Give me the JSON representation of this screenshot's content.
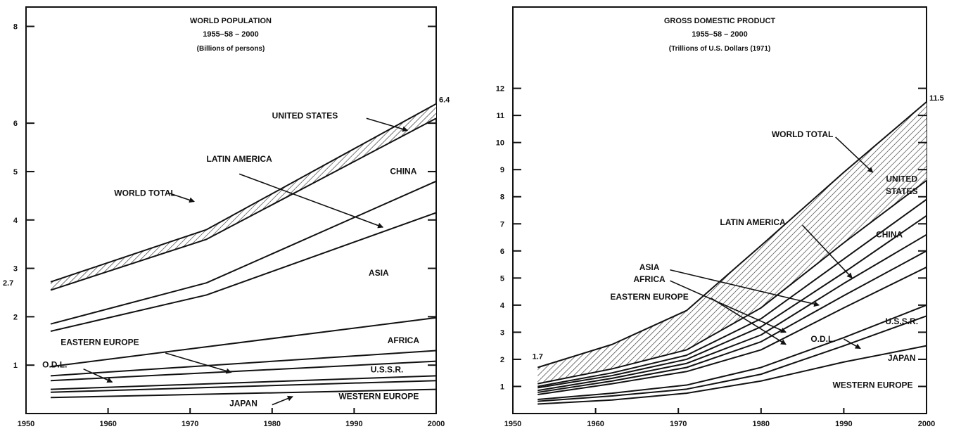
{
  "chart_data": [
    {
      "type": "area",
      "title_lines": [
        "WORLD POPULATION",
        "1955–58 – 2000",
        "(Billions of persons)"
      ],
      "xlabel": "",
      "ylabel": "",
      "xlim": [
        1950,
        2000
      ],
      "ylim": [
        0,
        8.4
      ],
      "xticks": [
        1950,
        1960,
        1970,
        1980,
        1990,
        2000
      ],
      "yticks": [
        1,
        2,
        3,
        4,
        5,
        6,
        8
      ],
      "extra_ytick_labels": [
        {
          "value": 2.7,
          "label": "2.7"
        }
      ],
      "end_labels": [
        {
          "x": 2000,
          "y": 6.4,
          "label": "6.4"
        }
      ],
      "grid": false,
      "hatched_band": [
        "WORLD TOTAL",
        "UNITED STATES"
      ],
      "series": [
        {
          "name": "WORLD TOTAL",
          "x": [
            1953,
            1972,
            2000
          ],
          "y": [
            2.72,
            3.8,
            6.4
          ]
        },
        {
          "name": "UNITED STATES",
          "x": [
            1953,
            1972,
            2000
          ],
          "y": [
            2.55,
            3.6,
            6.1
          ]
        },
        {
          "name": "CHINA",
          "x": [
            1953,
            1972,
            2000
          ],
          "y": [
            1.85,
            2.7,
            4.8
          ]
        },
        {
          "name": "LATIN AMERICA",
          "x": [
            1953,
            1972,
            2000
          ],
          "y": [
            1.7,
            2.45,
            4.15
          ]
        },
        {
          "name": "ASIA",
          "x": [
            1953,
            2000
          ],
          "y": [
            0.97,
            1.98
          ]
        },
        {
          "name": "AFRICA",
          "x": [
            1953,
            2000
          ],
          "y": [
            0.78,
            1.3
          ]
        },
        {
          "name": "EASTERN EUROPE",
          "x": [
            1953,
            2000
          ],
          "y": [
            0.68,
            1.08
          ]
        },
        {
          "name": "U.S.S.R.",
          "x": [
            1953,
            2000
          ],
          "y": [
            0.5,
            0.78
          ]
        },
        {
          "name": "O.D.L.",
          "x": [
            1953,
            2000
          ],
          "y": [
            0.44,
            0.68
          ]
        },
        {
          "name": "JAPAN",
          "x": [
            1953,
            2000
          ],
          "y": [
            0.33,
            0.5
          ]
        }
      ],
      "labels": [
        {
          "text": "UNITED STATES",
          "x": 1984,
          "y": 6.1
        },
        {
          "text": "LATIN AMERICA",
          "x": 1976,
          "y": 5.2
        },
        {
          "text": "CHINA",
          "x": 1996,
          "y": 4.95
        },
        {
          "text": "WORLD TOTAL",
          "x": 1964.5,
          "y": 4.5
        },
        {
          "text": "ASIA",
          "x": 1993,
          "y": 2.85
        },
        {
          "text": "EASTERN EUROPE",
          "x": 1959,
          "y": 1.42
        },
        {
          "text": "AFRICA",
          "x": 1996,
          "y": 1.45
        },
        {
          "text": "O.D.L.",
          "x": 1953.5,
          "y": 0.95
        },
        {
          "text": "U.S.S.R.",
          "x": 1994,
          "y": 0.85
        },
        {
          "text": "JAPAN",
          "x": 1976.5,
          "y": 0.15
        },
        {
          "text": "WESTERN EUROPE",
          "x": 1993,
          "y": 0.3
        }
      ],
      "arrows": [
        {
          "from": [
            1991.5,
            6.1
          ],
          "to": [
            1996.5,
            5.85
          ]
        },
        {
          "from": [
            1976,
            4.95
          ],
          "to": [
            1993.5,
            3.85
          ]
        },
        {
          "from": [
            1967.5,
            4.55
          ],
          "to": [
            1970.5,
            4.38
          ]
        },
        {
          "from": [
            1967,
            1.25
          ],
          "to": [
            1975,
            0.85
          ]
        },
        {
          "from": [
            1957,
            0.92
          ],
          "to": [
            1960.5,
            0.65
          ]
        },
        {
          "from": [
            1980,
            0.18
          ],
          "to": [
            1982.5,
            0.35
          ]
        }
      ]
    },
    {
      "type": "area",
      "title_lines": [
        "GROSS DOMESTIC PRODUCT",
        "1955–58 – 2000",
        "(Trillions of U.S. Dollars (1971)"
      ],
      "xlabel": "",
      "ylabel": "",
      "xlim": [
        1950,
        2000
      ],
      "ylim": [
        0,
        15
      ],
      "xticks": [
        1950,
        1960,
        1970,
        1980,
        1990,
        2000
      ],
      "yticks": [
        1,
        2,
        3,
        4,
        5,
        6,
        7,
        8,
        9,
        10,
        11,
        12
      ],
      "end_labels": [
        {
          "x": 2000,
          "y": 11.5,
          "label": "11.5"
        },
        {
          "x": 1953,
          "y": 1.7,
          "label": "1.7"
        }
      ],
      "grid": false,
      "hatched_band": [
        "WORLD TOTAL",
        "UNITED STATES"
      ],
      "series": [
        {
          "name": "WORLD TOTAL",
          "x": [
            1953,
            1962,
            1971,
            1980,
            1990,
            2000
          ],
          "y": [
            1.7,
            2.55,
            3.8,
            6.2,
            8.9,
            11.5
          ]
        },
        {
          "name": "UNITED STATES",
          "x": [
            1953,
            1962,
            1971,
            1980,
            1990,
            2000
          ],
          "y": [
            1.1,
            1.65,
            2.35,
            3.9,
            6.3,
            8.6
          ]
        },
        {
          "name": "CHINA",
          "x": [
            1953,
            1962,
            1971,
            1980,
            1990,
            2000
          ],
          "y": [
            1.0,
            1.5,
            2.15,
            3.5,
            5.7,
            7.9
          ]
        },
        {
          "name": "LATIN AMERICA",
          "x": [
            1953,
            1962,
            1971,
            1980,
            1990,
            2000
          ],
          "y": [
            0.95,
            1.4,
            2.0,
            3.2,
            5.2,
            7.3
          ]
        },
        {
          "name": "ASIA",
          "x": [
            1953,
            1962,
            1971,
            1980,
            1990,
            2000
          ],
          "y": [
            0.85,
            1.3,
            1.85,
            2.9,
            4.8,
            6.6
          ]
        },
        {
          "name": "AFRICA",
          "x": [
            1953,
            1962,
            1971,
            1980,
            1990,
            2000
          ],
          "y": [
            0.78,
            1.2,
            1.7,
            2.65,
            4.35,
            6.0
          ]
        },
        {
          "name": "EASTERN EUROPE",
          "x": [
            1953,
            1962,
            1971,
            1980,
            1990,
            2000
          ],
          "y": [
            0.7,
            1.1,
            1.55,
            2.35,
            3.9,
            5.4
          ]
        },
        {
          "name": "U.S.S.R.",
          "x": [
            1953,
            1962,
            1971,
            1980,
            1990,
            2000
          ],
          "y": [
            0.52,
            0.75,
            1.05,
            1.7,
            2.8,
            4.0
          ]
        },
        {
          "name": "O.D.L.",
          "x": [
            1953,
            1962,
            1971,
            1980,
            1990,
            2000
          ],
          "y": [
            0.45,
            0.65,
            0.9,
            1.45,
            2.5,
            3.6
          ]
        },
        {
          "name": "JAPAN",
          "x": [
            1953,
            1962,
            1971,
            1980,
            1990,
            2000
          ],
          "y": [
            0.35,
            0.5,
            0.75,
            1.2,
            1.9,
            2.5
          ]
        }
      ],
      "labels": [
        {
          "text": "WORLD TOTAL",
          "x": 1985,
          "y": 10.2
        },
        {
          "text": "UNITED",
          "x": 1997,
          "y": 8.55
        },
        {
          "text": "STATES",
          "x": 1997,
          "y": 8.1
        },
        {
          "text": "LATIN AMERICA",
          "x": 1979,
          "y": 6.95
        },
        {
          "text": "CHINA",
          "x": 1995.5,
          "y": 6.5
        },
        {
          "text": "ASIA",
          "x": 1966.5,
          "y": 5.3
        },
        {
          "text": "AFRICA",
          "x": 1966.5,
          "y": 4.85
        },
        {
          "text": "EASTERN EUROPE",
          "x": 1966.5,
          "y": 4.2
        },
        {
          "text": "U.S.S.R.",
          "x": 1997,
          "y": 3.3
        },
        {
          "text": "O.D.L.",
          "x": 1987.5,
          "y": 2.65
        },
        {
          "text": "JAPAN",
          "x": 1997,
          "y": 1.95
        },
        {
          "text": "WESTERN EUROPE",
          "x": 1993.5,
          "y": 0.95
        }
      ],
      "arrows": [
        {
          "from": [
            1989,
            10.2
          ],
          "to": [
            1993.5,
            8.9
          ]
        },
        {
          "from": [
            1985,
            6.95
          ],
          "to": [
            1991,
            5.0
          ]
        },
        {
          "from": [
            1969,
            5.3
          ],
          "to": [
            1987,
            4.0
          ]
        },
        {
          "from": [
            1969,
            4.9
          ],
          "to": [
            1983,
            3.0
          ]
        },
        {
          "from": [
            1974,
            4.25
          ],
          "to": [
            1983,
            2.55
          ]
        },
        {
          "from": [
            1990,
            2.75
          ],
          "to": [
            1992,
            2.4
          ]
        }
      ]
    }
  ]
}
